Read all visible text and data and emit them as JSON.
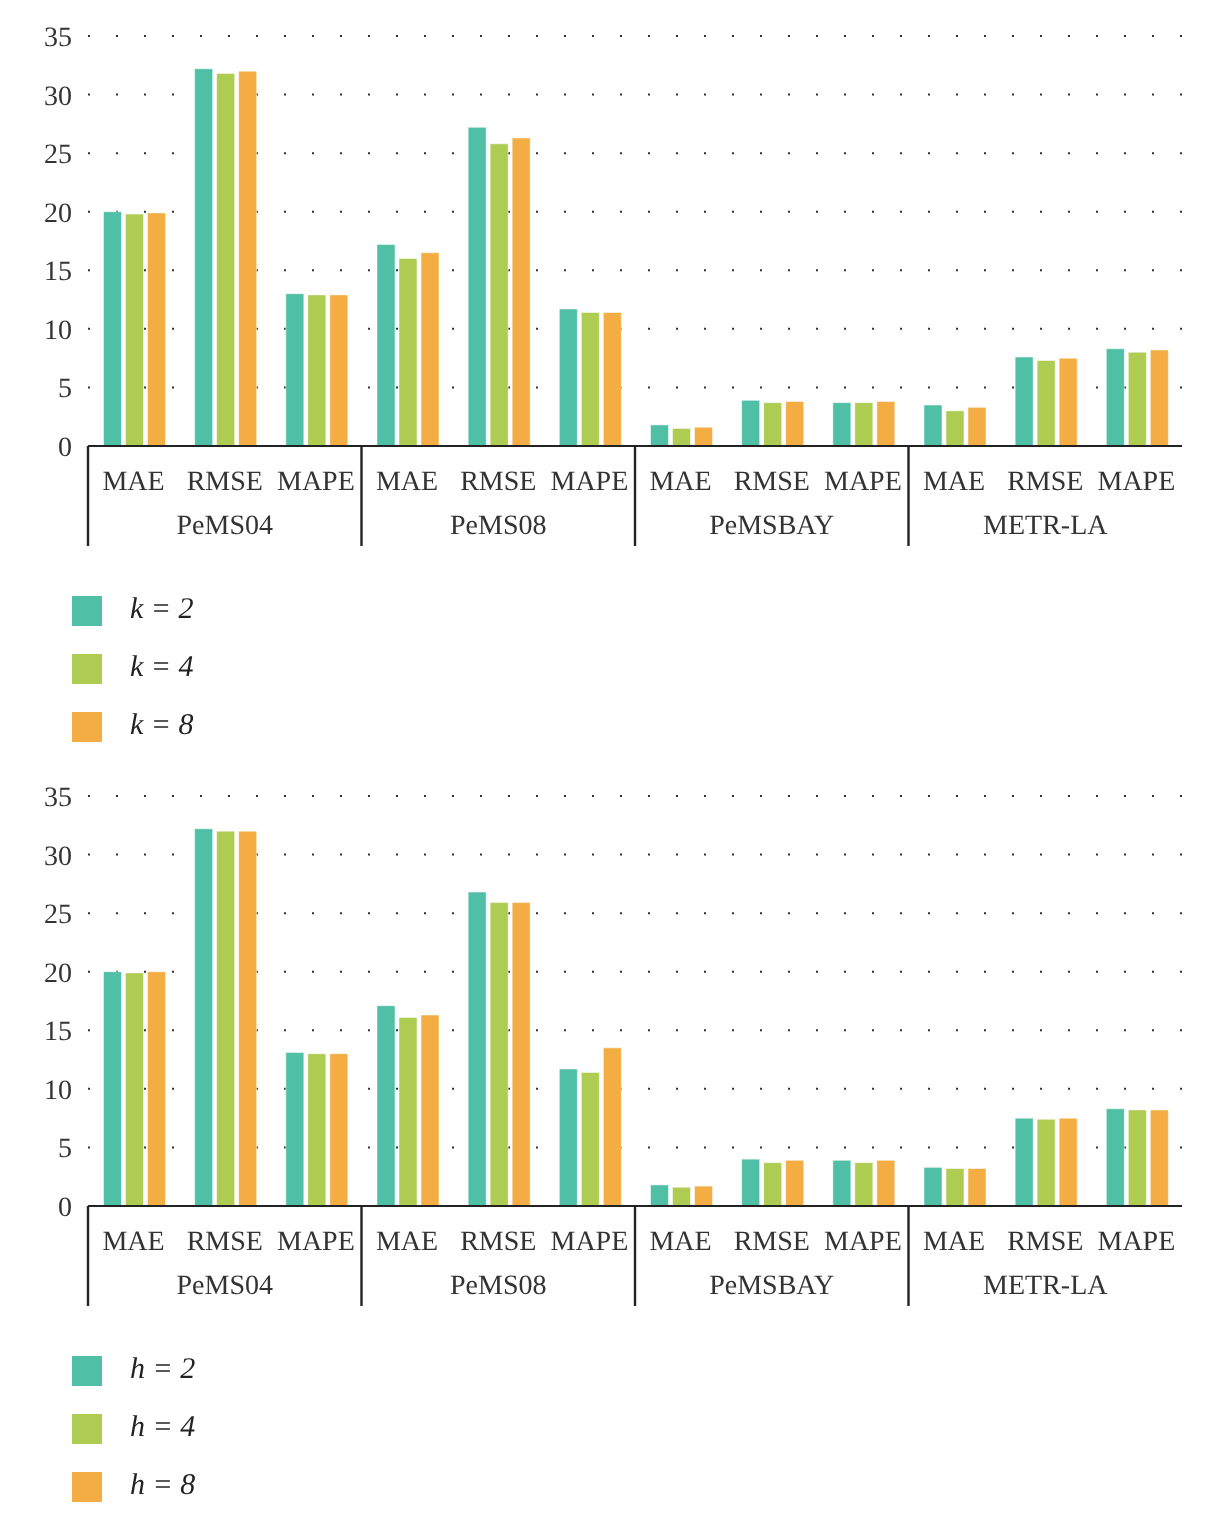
{
  "chart_data": [
    {
      "type": "bar",
      "categories": [
        "MAE",
        "RMSE",
        "MAPE",
        "MAE",
        "RMSE",
        "MAPE",
        "MAE",
        "RMSE",
        "MAPE",
        "MAE",
        "RMSE",
        "MAPE"
      ],
      "annotations": [
        "PeMS04",
        "PeMS08",
        "PeMSBAY",
        "METR-LA"
      ],
      "series": [
        {
          "name": "k = 2",
          "color": "#4fbfa5",
          "values": [
            20.0,
            32.2,
            13.0,
            17.2,
            27.2,
            11.7,
            1.8,
            3.9,
            3.7,
            3.5,
            7.6,
            8.3
          ]
        },
        {
          "name": "k = 4",
          "color": "#aecb52",
          "values": [
            19.8,
            31.8,
            12.9,
            16.0,
            25.8,
            11.4,
            1.5,
            3.7,
            3.7,
            3.0,
            7.3,
            8.0
          ]
        },
        {
          "name": "k = 8",
          "color": "#f3ad42",
          "values": [
            19.9,
            32.0,
            12.9,
            16.5,
            26.3,
            11.4,
            1.6,
            3.8,
            3.8,
            3.3,
            7.5,
            8.2
          ]
        }
      ],
      "ylim": [
        0,
        35
      ],
      "yticks": [
        0,
        5,
        10,
        15,
        20,
        25,
        30,
        35
      ],
      "grid": "y",
      "legend": "bottom left"
    },
    {
      "type": "bar",
      "categories": [
        "MAE",
        "RMSE",
        "MAPE",
        "MAE",
        "RMSE",
        "MAPE",
        "MAE",
        "RMSE",
        "MAPE",
        "MAE",
        "RMSE",
        "MAPE"
      ],
      "annotations": [
        "PeMS04",
        "PeMS08",
        "PeMSBAY",
        "METR-LA"
      ],
      "series": [
        {
          "name": "h = 2",
          "color": "#4fbfa5",
          "values": [
            20.0,
            32.2,
            13.1,
            17.1,
            26.8,
            11.7,
            1.8,
            4.0,
            3.9,
            3.3,
            7.5,
            8.3
          ]
        },
        {
          "name": "h = 4",
          "color": "#aecb52",
          "values": [
            19.9,
            32.0,
            13.0,
            16.1,
            25.9,
            11.4,
            1.6,
            3.7,
            3.7,
            3.2,
            7.4,
            8.2
          ]
        },
        {
          "name": "h = 8",
          "color": "#f3ad42",
          "values": [
            20.0,
            32.0,
            13.0,
            16.3,
            25.9,
            13.5,
            1.7,
            3.9,
            3.9,
            3.2,
            7.5,
            8.2
          ]
        }
      ],
      "ylim": [
        0,
        35
      ],
      "yticks": [
        0,
        5,
        10,
        15,
        20,
        25,
        30,
        35
      ],
      "grid": "y",
      "legend": "bottom left"
    }
  ]
}
